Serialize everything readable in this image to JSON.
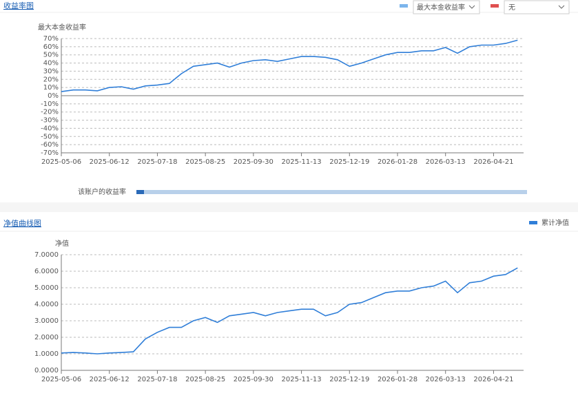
{
  "ui": {
    "section1_title": "收益率图",
    "section2_title": "净值曲线图",
    "progress_label": "该账户的收益率",
    "select2": "无"
  },
  "chart_data": [
    {
      "type": "line",
      "y_title": "最大本金收益率",
      "categories": [
        "2025-05-06",
        null,
        null,
        null,
        "2025-06-12",
        null,
        null,
        null,
        "2025-07-18",
        null,
        null,
        null,
        "2025-08-25",
        null,
        null,
        null,
        "2025-09-30",
        null,
        null,
        null,
        "2025-11-13",
        null,
        null,
        null,
        "2025-12-19",
        null,
        null,
        null,
        "2026-01-28",
        null,
        null,
        null,
        "2026-03-13",
        null,
        null,
        null,
        "2026-04-21",
        null,
        null
      ],
      "series": [
        {
          "name": "最大本金收益率",
          "color": "#2f7ed8",
          "values": [
            5,
            7,
            7,
            6,
            10,
            11,
            8,
            12,
            13,
            15,
            27,
            36,
            38,
            40,
            35,
            40,
            43,
            44,
            42,
            45,
            48,
            48,
            47,
            44,
            36,
            40,
            45,
            50,
            53,
            53,
            55,
            55,
            59,
            52,
            60,
            62,
            62,
            64,
            68
          ]
        }
      ],
      "ylim": [
        -70,
        70
      ],
      "yticks": [
        {
          "value": 70,
          "label": "70%"
        },
        {
          "value": 60,
          "label": "60%"
        },
        {
          "value": 50,
          "label": "50%"
        },
        {
          "value": 40,
          "label": "40%"
        },
        {
          "value": 30,
          "label": "30%"
        },
        {
          "value": 20,
          "label": "20%"
        },
        {
          "value": 10,
          "label": "10%"
        },
        {
          "value": 0,
          "label": "0%"
        },
        {
          "value": -10,
          "label": "-10%"
        },
        {
          "value": -20,
          "label": "-20%"
        },
        {
          "value": -30,
          "label": "-30%"
        },
        {
          "value": -40,
          "label": "-40%"
        },
        {
          "value": -50,
          "label": "-50%"
        },
        {
          "value": -60,
          "label": "-60%"
        },
        {
          "value": -70,
          "label": "-70%"
        }
      ],
      "grid": true
    },
    {
      "type": "line",
      "y_title": "净值",
      "categories": [
        "2025-05-06",
        null,
        null,
        null,
        "2025-06-12",
        null,
        null,
        null,
        "2025-07-18",
        null,
        null,
        null,
        "2025-08-25",
        null,
        null,
        null,
        "2025-09-30",
        null,
        null,
        null,
        "2025-11-13",
        null,
        null,
        null,
        "2025-12-19",
        null,
        null,
        null,
        "2026-01-28",
        null,
        null,
        null,
        "2026-03-13",
        null,
        null,
        null,
        "2026-04-21",
        null,
        null
      ],
      "series": [
        {
          "name": "累计净值",
          "color": "#2f7ed8",
          "values": [
            1.05,
            1.08,
            1.05,
            1.0,
            1.05,
            1.08,
            1.12,
            1.9,
            2.3,
            2.6,
            2.6,
            3.0,
            3.2,
            2.9,
            3.3,
            3.4,
            3.5,
            3.3,
            3.5,
            3.6,
            3.7,
            3.7,
            3.3,
            3.5,
            4.0,
            4.1,
            4.4,
            4.7,
            4.8,
            4.8,
            5.0,
            5.1,
            5.4,
            4.7,
            5.3,
            5.4,
            5.7,
            5.8,
            6.2
          ]
        }
      ],
      "ylim": [
        0,
        7
      ],
      "yticks": [
        {
          "value": 7,
          "label": "7.0000"
        },
        {
          "value": 6,
          "label": "6.0000"
        },
        {
          "value": 5,
          "label": "5.0000"
        },
        {
          "value": 4,
          "label": "4.0000"
        },
        {
          "value": 3,
          "label": "3.0000"
        },
        {
          "value": 2,
          "label": "2.0000"
        },
        {
          "value": 1,
          "label": "1.0000"
        },
        {
          "value": 0,
          "label": "0.0000"
        }
      ],
      "grid": true
    }
  ]
}
